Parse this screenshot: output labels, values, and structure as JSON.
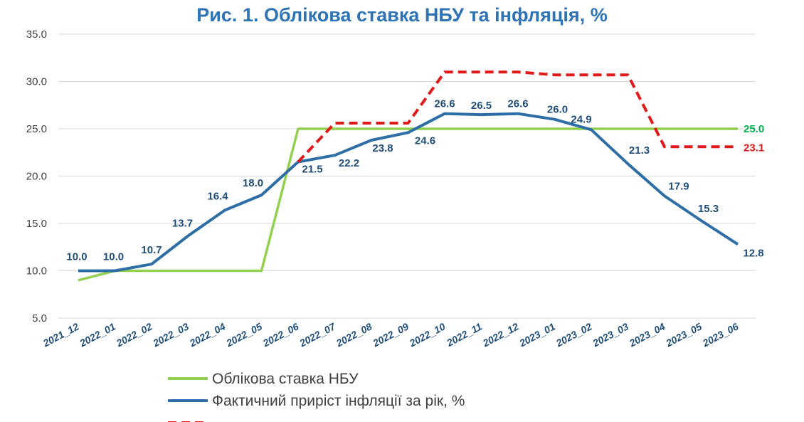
{
  "chart_data": {
    "type": "line",
    "title": "Рис. 1. Облікова ставка НБУ та інфляція, %",
    "xlabel": "",
    "ylabel": "",
    "ylim": [
      5,
      35
    ],
    "yticks": [
      "35.0",
      "30.0",
      "25.0",
      "20.0",
      "15.0",
      "10.0",
      "5.0"
    ],
    "grid": "horizontal",
    "legend_position": "bottom",
    "categories": [
      "2021_12",
      "2022_01",
      "2022_02",
      "2022_03",
      "2022_04",
      "2022_05",
      "2022_06",
      "2022_07",
      "2022_08",
      "2022_09",
      "2022_10",
      "2022_11",
      "2022_12",
      "2023_01",
      "2023_02",
      "2023_03",
      "2023_04",
      "2023_05",
      "2023_06"
    ],
    "series": [
      {
        "name": "Облікова ставка НБУ",
        "color": "#92d050",
        "style": "solid",
        "values": [
          9,
          10,
          10,
          10,
          10,
          10,
          25,
          25,
          25,
          25,
          25,
          25,
          25,
          25,
          25,
          25,
          25,
          25,
          25
        ],
        "end_label": "25.0",
        "end_label_color": "#00b050"
      },
      {
        "name": "Фактичний приріст інфляції за рік, %",
        "color": "#2e6ea6",
        "style": "solid",
        "values": [
          10.0,
          10.0,
          10.7,
          13.7,
          16.4,
          18.0,
          21.5,
          22.2,
          23.8,
          24.6,
          26.6,
          26.5,
          26.6,
          26.0,
          24.9,
          21.3,
          17.9,
          15.3,
          12.8
        ],
        "labels": [
          "10.0",
          "10.0",
          "10.7",
          "13.7",
          "16.4",
          "18.0",
          "21.5",
          "22.2",
          "23.8",
          "24.6",
          "26.6",
          "26.5",
          "26.6",
          "26.0",
          "24.9",
          "21.3",
          "17.9",
          "15.3",
          "12.8"
        ],
        "label_color": "#1f4e79"
      },
      {
        "color": "#e0191a",
        "style": "dashed",
        "values": [
          null,
          null,
          null,
          null,
          null,
          null,
          21.5,
          25.6,
          25.6,
          25.6,
          31.0,
          31.0,
          31.0,
          30.7,
          30.7,
          30.7,
          23.1,
          23.1,
          23.1
        ],
        "end_label": "23.1",
        "end_label_color": "#e0191a"
      }
    ]
  }
}
